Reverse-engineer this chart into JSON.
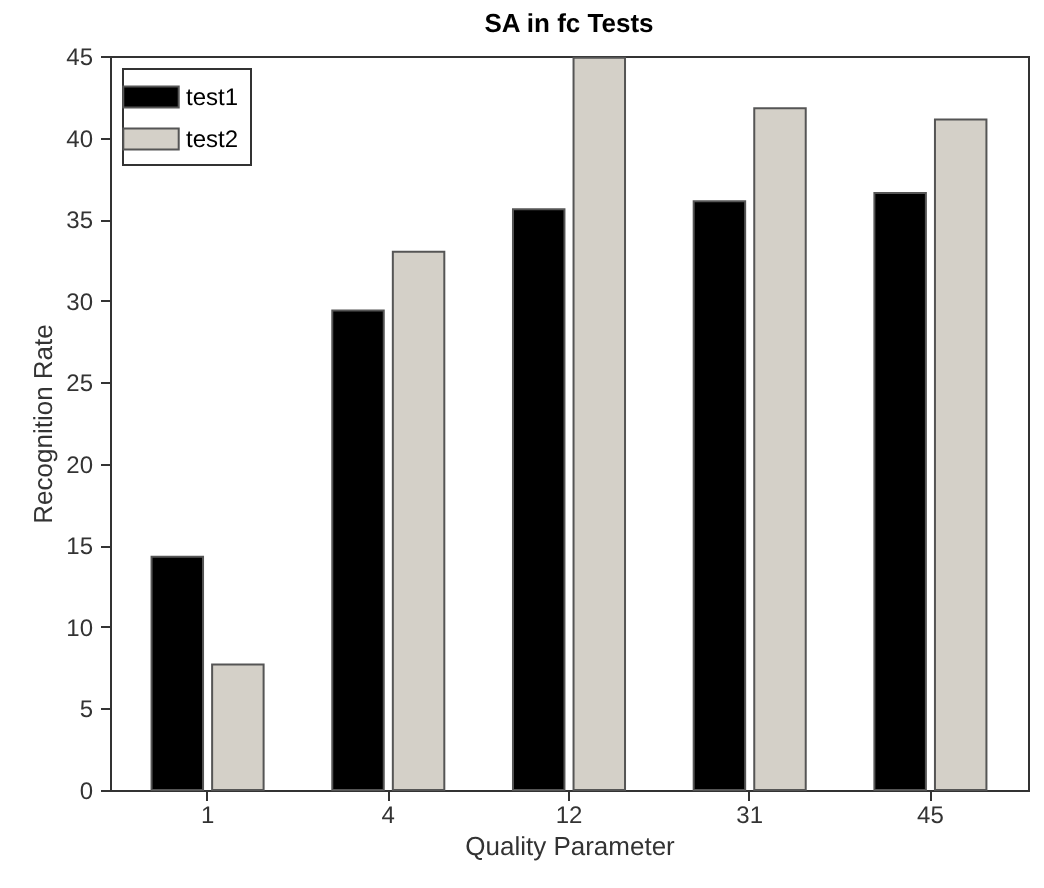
{
  "chart_data": {
    "type": "bar",
    "title": "SA in fc Tests",
    "xlabel": "Quality Parameter",
    "ylabel": "Recognition Rate",
    "categories": [
      "1",
      "4",
      "12",
      "31",
      "45"
    ],
    "series": [
      {
        "name": "test1",
        "color": "#000000",
        "values": [
          14.3,
          29.4,
          35.6,
          36.1,
          36.6
        ]
      },
      {
        "name": "test2",
        "color": "#d4d0c8",
        "values": [
          7.7,
          33.0,
          44.9,
          41.8,
          41.1
        ]
      }
    ],
    "ylim": [
      0,
      45
    ],
    "yticks": [
      0,
      5,
      10,
      15,
      20,
      25,
      30,
      35,
      40,
      45
    ],
    "grid": false,
    "legend": "top left"
  }
}
